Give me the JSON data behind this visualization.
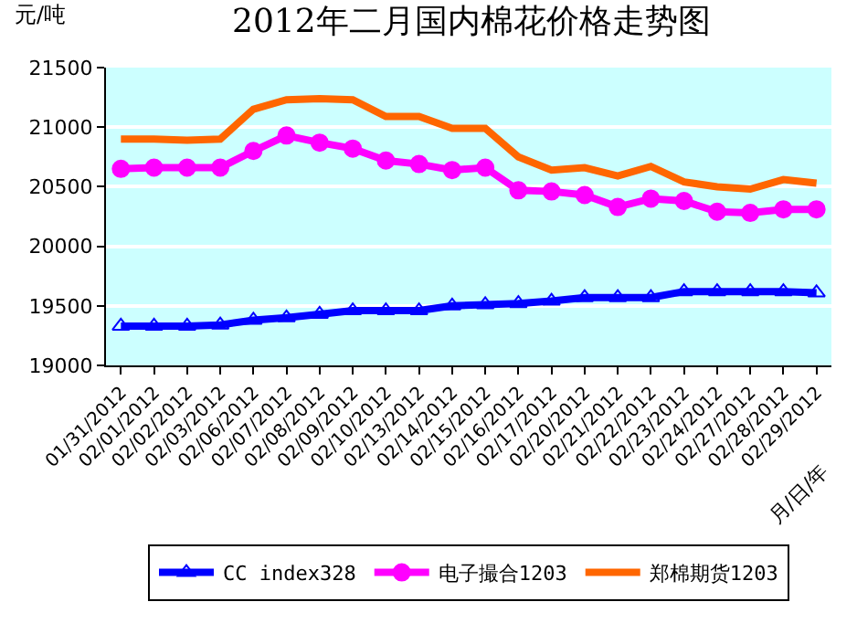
{
  "chart_data": {
    "type": "line",
    "title": "2012年二月国内棉花价格走势图",
    "ylabel": "元/吨",
    "xlabel": "月/日/年",
    "categories": [
      "01/31/2012",
      "02/01/2012",
      "02/02/2012",
      "02/03/2012",
      "02/06/2012",
      "02/07/2012",
      "02/08/2012",
      "02/09/2012",
      "02/10/2012",
      "02/13/2012",
      "02/14/2012",
      "02/15/2012",
      "02/16/2012",
      "02/17/2012",
      "02/20/2012",
      "02/21/2012",
      "02/22/2012",
      "02/23/2012",
      "02/24/2012",
      "02/27/2012",
      "02/28/2012",
      "02/29/2012"
    ],
    "series": [
      {
        "name": "CC index328",
        "color": "#0000ff",
        "marker": "triangle",
        "values": [
          19330,
          19330,
          19330,
          19340,
          19380,
          19400,
          19430,
          19460,
          19460,
          19460,
          19500,
          19510,
          19520,
          19540,
          19570,
          19570,
          19570,
          19620,
          19620,
          19620,
          19620,
          19610
        ]
      },
      {
        "name": "电子撮合1203",
        "color": "#ff00ff",
        "marker": "circle",
        "values": [
          20650,
          20660,
          20660,
          20660,
          20800,
          20930,
          20870,
          20820,
          20720,
          20690,
          20640,
          20660,
          20470,
          20460,
          20430,
          20330,
          20400,
          20380,
          20290,
          20280,
          20310,
          20310
        ]
      },
      {
        "name": "郑棉期货1203",
        "color": "#ff6600",
        "marker": "none",
        "values": [
          20900,
          20900,
          20890,
          20900,
          21150,
          21230,
          21240,
          21230,
          21090,
          21090,
          20990,
          20990,
          20750,
          20640,
          20660,
          20590,
          20670,
          20540,
          20500,
          20480,
          20560,
          20530
        ]
      }
    ],
    "ylim": [
      19000,
      21500
    ],
    "yticks": [
      19000,
      19500,
      20000,
      20500,
      21000,
      21500
    ],
    "grid": "y",
    "legend": "bottom",
    "line_style": "solid"
  }
}
